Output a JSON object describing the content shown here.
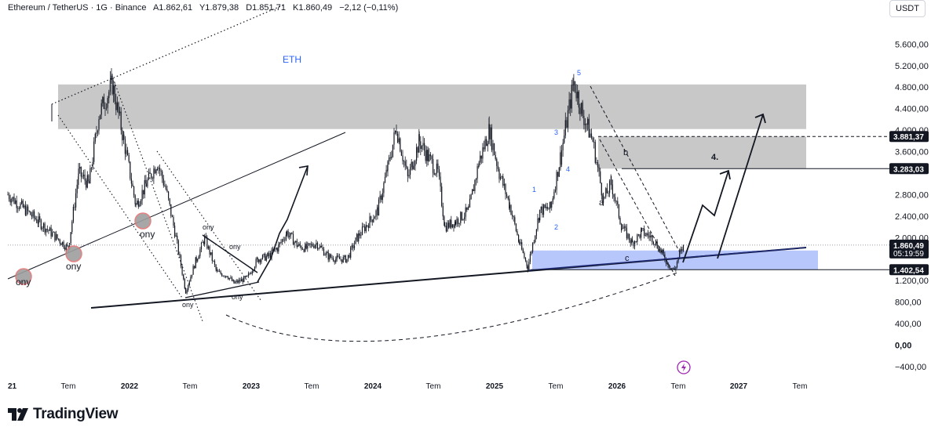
{
  "header": {
    "symbol": "Ethereum / TetherUS · 1G · Binance",
    "open": "A1.862,61",
    "high": "Y1.879,38",
    "low": "D1.851,71",
    "close": "K1.860,49",
    "change": "−2,12 (−0,11%)"
  },
  "currency_button": "USDT",
  "brand": {
    "name": "TradingView"
  },
  "colors": {
    "candle": "#131722",
    "resistance_zone": "#c8c8c8",
    "support_zone": "#b7c6fb",
    "label_blue": "#2962ff",
    "circle_fill": "#9e9e9e",
    "circle_stroke": "#e57373",
    "lightning": "#9c27b0"
  },
  "chart_data": {
    "type": "candlestick",
    "title": "ETH",
    "x_axis": {
      "ticks": [
        "21",
        "Tem",
        "2022",
        "Tem",
        "2023",
        "Tem",
        "2024",
        "Tem",
        "2025",
        "Tem",
        "2026",
        "Tem",
        "2027",
        "Tem"
      ],
      "tick_dates": [
        "2021-05",
        "2021-07",
        "2022-01",
        "2022-07",
        "2023-01",
        "2023-07",
        "2024-01",
        "2024-07",
        "2025-01",
        "2025-07",
        "2026-01",
        "2026-07",
        "2027-01",
        "2027-07"
      ]
    },
    "y_axis": {
      "ticks": [
        "5.600,00",
        "5.200,00",
        "4.800,00",
        "4.400,00",
        "4.000,00",
        "3.600,00",
        "2.800,00",
        "2.400,00",
        "2.000,00",
        "1.200,00",
        "800,00",
        "400,00",
        "0,00",
        "−400,00"
      ],
      "tick_values": [
        5600,
        5200,
        4800,
        4400,
        4000,
        3600,
        2800,
        2400,
        2000,
        1200,
        800,
        400,
        0,
        -400
      ],
      "range": [
        -600,
        6000
      ]
    },
    "price_labels": [
      {
        "text": "3.881,37",
        "value": 3881.37
      },
      {
        "text": "3.283,03",
        "value": 3283.03
      },
      {
        "text": "1.860,49",
        "sub": "05:19:59",
        "value": 1860.49
      },
      {
        "text": "1.402,54",
        "value": 1402.54
      }
    ],
    "price_series": {
      "dates": [
        "2021-05-01",
        "2021-06-01",
        "2021-07-01",
        "2021-08-01",
        "2021-09-01",
        "2021-10-01",
        "2021-11-10",
        "2021-12-15",
        "2022-01-20",
        "2022-02-20",
        "2022-03-25",
        "2022-04-20",
        "2022-05-20",
        "2022-06-18",
        "2022-07-20",
        "2022-08-14",
        "2022-09-20",
        "2022-10-20",
        "2022-11-10",
        "2022-12-20",
        "2023-01-20",
        "2023-02-20",
        "2023-03-20",
        "2023-04-18",
        "2023-05-20",
        "2023-06-15",
        "2023-07-15",
        "2023-08-20",
        "2023-09-15",
        "2023-10-15",
        "2023-11-15",
        "2023-12-15",
        "2024-01-15",
        "2024-02-15",
        "2024-03-12",
        "2024-04-15",
        "2024-05-20",
        "2024-06-15",
        "2024-07-15",
        "2024-08-05",
        "2024-09-06",
        "2024-10-15",
        "2024-11-15",
        "2024-12-16",
        "2025-01-15",
        "2025-02-15",
        "2025-03-15",
        "2025-04-09",
        "2025-05-15",
        "2025-06-15",
        "2025-07-15",
        "2025-08-24",
        "2025-09-20",
        "2025-10-20",
        "2025-11-21",
        "2025-12-15",
        "2026-01-15",
        "2026-02-15",
        "2026-03-15",
        "2026-04-15",
        "2026-05-15",
        "2026-06-01",
        "2026-06-20",
        "2026-07-05",
        "2026-07-20"
      ],
      "close": [
        2800,
        2300,
        1800,
        3200,
        3000,
        4300,
        4850,
        3800,
        2600,
        3000,
        3400,
        2900,
        2000,
        1000,
        1600,
        1980,
        1350,
        1300,
        1150,
        1250,
        1600,
        1650,
        1800,
        2100,
        1850,
        1800,
        1900,
        1650,
        1600,
        1600,
        2000,
        2250,
        2500,
        3300,
        4050,
        3100,
        3800,
        3500,
        3200,
        2200,
        2300,
        2500,
        3400,
        4000,
        3200,
        2600,
        1900,
        1450,
        2500,
        2550,
        3500,
        4900,
        4300,
        3800,
        2700,
        3000,
        2200,
        1900,
        2100,
        2000,
        1700,
        1500,
        1400,
        1700,
        1860
      ]
    },
    "zones": [
      {
        "label": "resistance",
        "from": "2021-05",
        "to": "2027-07",
        "low": 4020,
        "high": 4850
      },
      {
        "label": "resistance-2",
        "from": "2025-08",
        "to": "2027-07",
        "low": 3283,
        "high": 3881
      },
      {
        "label": "support",
        "from": "2025-04",
        "to": "2027-07",
        "low": 1402,
        "high": 1760
      }
    ],
    "annotations": {
      "ony": [
        "ony",
        "ony",
        "ony"
      ],
      "ony_small": [
        "ony",
        "ony",
        "ony",
        "ony"
      ],
      "wave_labels": [
        "1",
        "2",
        "3",
        "4",
        "5"
      ],
      "abc_labels": [
        "a",
        "b",
        "c"
      ],
      "target_label": "4."
    },
    "legend": "none",
    "grid": false
  }
}
